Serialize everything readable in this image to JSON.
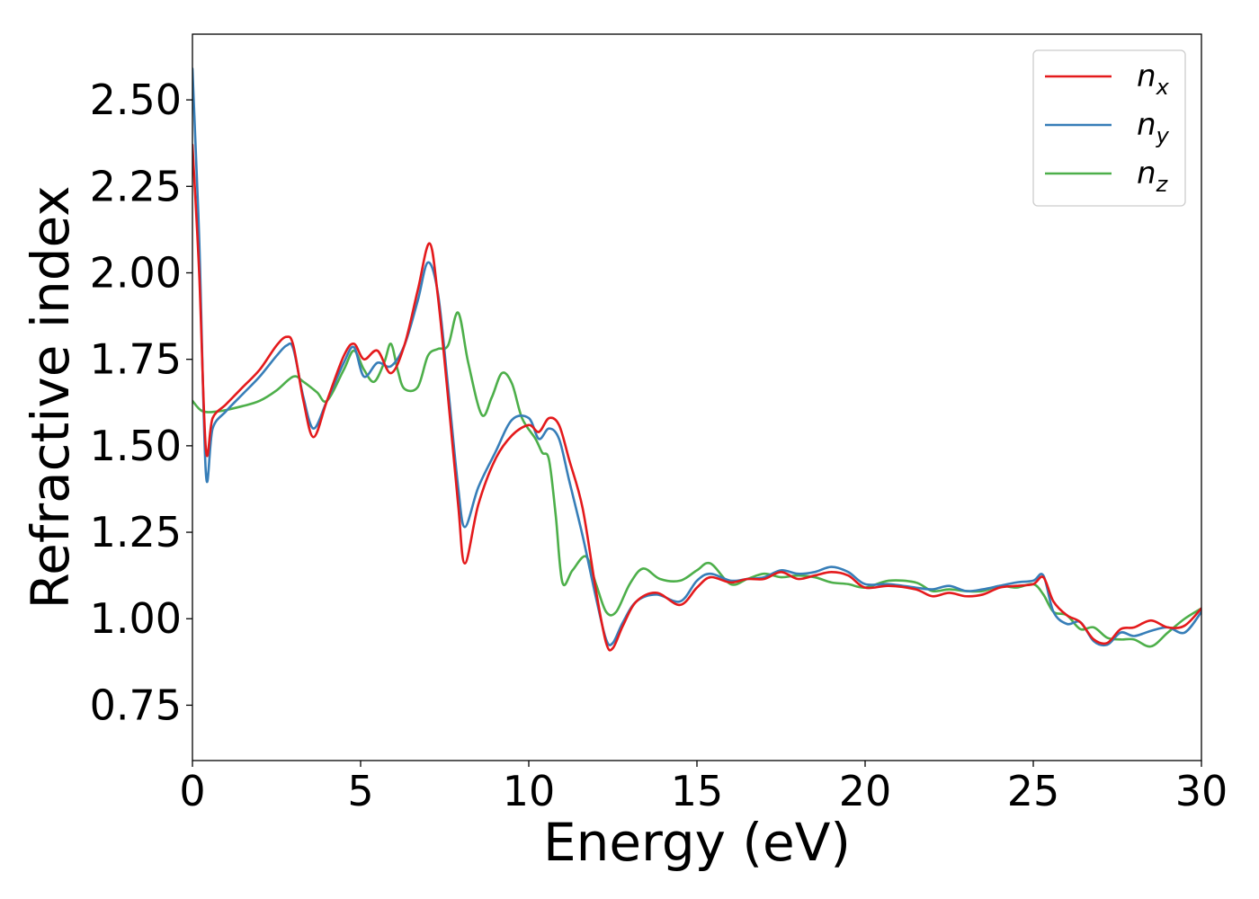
{
  "chart_data": {
    "type": "line",
    "title": "",
    "xlabel": "Energy (eV)",
    "ylabel": "Refractive index",
    "xlim": [
      0,
      30
    ],
    "ylim": [
      0.59,
      2.69
    ],
    "xticks": [
      0,
      5,
      10,
      15,
      20,
      25,
      30
    ],
    "xtick_labels": [
      "0",
      "5",
      "10",
      "15",
      "20",
      "25",
      "30"
    ],
    "yticks": [
      0.75,
      1.0,
      1.25,
      1.5,
      1.75,
      2.0,
      2.25,
      2.5
    ],
    "ytick_labels": [
      "0.75",
      "1.00",
      "1.25",
      "1.50",
      "1.75",
      "2.00",
      "2.25",
      "2.50"
    ],
    "grid": false,
    "legend_position": "top-right",
    "series": [
      {
        "name": "n_x",
        "label_base": "n",
        "label_sub": "x",
        "color": "#e41a1c",
        "points": [
          [
            0,
            2.37
          ],
          [
            0.2,
            2.0
          ],
          [
            0.4,
            1.49
          ],
          [
            0.6,
            1.58
          ],
          [
            1.0,
            1.62
          ],
          [
            1.5,
            1.67
          ],
          [
            2.0,
            1.72
          ],
          [
            2.5,
            1.79
          ],
          [
            2.8,
            1.815
          ],
          [
            3.0,
            1.79
          ],
          [
            3.3,
            1.63
          ],
          [
            3.6,
            1.525
          ],
          [
            4.0,
            1.63
          ],
          [
            4.5,
            1.76
          ],
          [
            4.8,
            1.795
          ],
          [
            5.1,
            1.75
          ],
          [
            5.5,
            1.775
          ],
          [
            5.9,
            1.71
          ],
          [
            6.3,
            1.79
          ],
          [
            6.7,
            1.95
          ],
          [
            7.05,
            2.085
          ],
          [
            7.3,
            1.93
          ],
          [
            7.6,
            1.64
          ],
          [
            7.9,
            1.33
          ],
          [
            8.1,
            1.16
          ],
          [
            8.5,
            1.33
          ],
          [
            9.0,
            1.46
          ],
          [
            9.5,
            1.53
          ],
          [
            10.0,
            1.56
          ],
          [
            10.3,
            1.54
          ],
          [
            10.6,
            1.58
          ],
          [
            10.9,
            1.56
          ],
          [
            11.2,
            1.46
          ],
          [
            11.6,
            1.32
          ],
          [
            12.0,
            1.08
          ],
          [
            12.3,
            0.93
          ],
          [
            12.5,
            0.915
          ],
          [
            12.8,
            0.98
          ],
          [
            13.2,
            1.05
          ],
          [
            13.8,
            1.075
          ],
          [
            14.5,
            1.04
          ],
          [
            15.0,
            1.09
          ],
          [
            15.4,
            1.12
          ],
          [
            16.0,
            1.105
          ],
          [
            16.5,
            1.115
          ],
          [
            17.0,
            1.115
          ],
          [
            17.5,
            1.135
          ],
          [
            18.0,
            1.115
          ],
          [
            18.5,
            1.125
          ],
          [
            19.0,
            1.135
          ],
          [
            19.5,
            1.125
          ],
          [
            20.0,
            1.09
          ],
          [
            20.7,
            1.095
          ],
          [
            21.5,
            1.085
          ],
          [
            22.0,
            1.065
          ],
          [
            22.5,
            1.075
          ],
          [
            23.0,
            1.065
          ],
          [
            23.5,
            1.07
          ],
          [
            24.0,
            1.09
          ],
          [
            24.5,
            1.095
          ],
          [
            25.0,
            1.1
          ],
          [
            25.3,
            1.12
          ],
          [
            25.6,
            1.05
          ],
          [
            26.0,
            1.01
          ],
          [
            26.4,
            0.99
          ],
          [
            26.8,
            0.94
          ],
          [
            27.2,
            0.93
          ],
          [
            27.6,
            0.97
          ],
          [
            28.0,
            0.975
          ],
          [
            28.5,
            0.995
          ],
          [
            29.0,
            0.975
          ],
          [
            29.5,
            0.98
          ],
          [
            30.0,
            1.03
          ]
        ]
      },
      {
        "name": "n_y",
        "label_base": "n",
        "label_sub": "y",
        "color": "#377eb8",
        "points": [
          [
            0,
            2.59
          ],
          [
            0.2,
            2.1
          ],
          [
            0.4,
            1.42
          ],
          [
            0.6,
            1.55
          ],
          [
            1.0,
            1.6
          ],
          [
            1.5,
            1.65
          ],
          [
            2.0,
            1.7
          ],
          [
            2.5,
            1.76
          ],
          [
            2.8,
            1.79
          ],
          [
            3.0,
            1.78
          ],
          [
            3.3,
            1.64
          ],
          [
            3.6,
            1.55
          ],
          [
            4.0,
            1.63
          ],
          [
            4.5,
            1.74
          ],
          [
            4.8,
            1.785
          ],
          [
            5.1,
            1.7
          ],
          [
            5.5,
            1.74
          ],
          [
            5.9,
            1.73
          ],
          [
            6.3,
            1.79
          ],
          [
            6.7,
            1.92
          ],
          [
            7.0,
            2.03
          ],
          [
            7.3,
            1.94
          ],
          [
            7.6,
            1.67
          ],
          [
            7.9,
            1.38
          ],
          [
            8.1,
            1.265
          ],
          [
            8.5,
            1.38
          ],
          [
            9.0,
            1.48
          ],
          [
            9.5,
            1.575
          ],
          [
            10.0,
            1.58
          ],
          [
            10.3,
            1.52
          ],
          [
            10.6,
            1.55
          ],
          [
            10.9,
            1.52
          ],
          [
            11.2,
            1.4
          ],
          [
            11.6,
            1.24
          ],
          [
            12.0,
            1.06
          ],
          [
            12.3,
            0.94
          ],
          [
            12.5,
            0.93
          ],
          [
            12.8,
            0.99
          ],
          [
            13.2,
            1.05
          ],
          [
            13.8,
            1.07
          ],
          [
            14.5,
            1.05
          ],
          [
            15.0,
            1.11
          ],
          [
            15.4,
            1.13
          ],
          [
            16.0,
            1.11
          ],
          [
            16.5,
            1.115
          ],
          [
            17.0,
            1.12
          ],
          [
            17.5,
            1.14
          ],
          [
            18.0,
            1.13
          ],
          [
            18.5,
            1.135
          ],
          [
            19.0,
            1.15
          ],
          [
            19.5,
            1.135
          ],
          [
            20.0,
            1.1
          ],
          [
            20.7,
            1.1
          ],
          [
            21.5,
            1.09
          ],
          [
            22.0,
            1.085
          ],
          [
            22.5,
            1.095
          ],
          [
            23.0,
            1.08
          ],
          [
            23.5,
            1.085
          ],
          [
            24.0,
            1.095
          ],
          [
            24.5,
            1.105
          ],
          [
            25.0,
            1.11
          ],
          [
            25.3,
            1.125
          ],
          [
            25.6,
            1.02
          ],
          [
            26.0,
            0.985
          ],
          [
            26.4,
            0.99
          ],
          [
            26.8,
            0.935
          ],
          [
            27.2,
            0.925
          ],
          [
            27.6,
            0.96
          ],
          [
            28.0,
            0.95
          ],
          [
            28.5,
            0.965
          ],
          [
            29.0,
            0.975
          ],
          [
            29.5,
            0.96
          ],
          [
            30.0,
            1.02
          ]
        ]
      },
      {
        "name": "n_z",
        "label_base": "n",
        "label_sub": "z",
        "color": "#4daf4a",
        "points": [
          [
            0,
            1.63
          ],
          [
            0.3,
            1.6
          ],
          [
            0.8,
            1.6
          ],
          [
            1.5,
            1.615
          ],
          [
            2.0,
            1.63
          ],
          [
            2.5,
            1.66
          ],
          [
            3.0,
            1.7
          ],
          [
            3.3,
            1.685
          ],
          [
            3.7,
            1.655
          ],
          [
            4.0,
            1.63
          ],
          [
            4.5,
            1.72
          ],
          [
            4.8,
            1.775
          ],
          [
            5.1,
            1.72
          ],
          [
            5.4,
            1.685
          ],
          [
            5.7,
            1.74
          ],
          [
            5.9,
            1.795
          ],
          [
            6.1,
            1.72
          ],
          [
            6.3,
            1.665
          ],
          [
            6.7,
            1.67
          ],
          [
            7.0,
            1.76
          ],
          [
            7.3,
            1.78
          ],
          [
            7.6,
            1.79
          ],
          [
            7.9,
            1.885
          ],
          [
            8.2,
            1.74
          ],
          [
            8.6,
            1.59
          ],
          [
            8.9,
            1.64
          ],
          [
            9.2,
            1.71
          ],
          [
            9.5,
            1.68
          ],
          [
            9.8,
            1.58
          ],
          [
            10.2,
            1.52
          ],
          [
            10.4,
            1.48
          ],
          [
            10.6,
            1.46
          ],
          [
            10.8,
            1.3
          ],
          [
            11.0,
            1.105
          ],
          [
            11.3,
            1.14
          ],
          [
            11.7,
            1.18
          ],
          [
            12.0,
            1.1
          ],
          [
            12.3,
            1.02
          ],
          [
            12.6,
            1.02
          ],
          [
            13.0,
            1.1
          ],
          [
            13.4,
            1.145
          ],
          [
            13.9,
            1.115
          ],
          [
            14.5,
            1.11
          ],
          [
            15.0,
            1.14
          ],
          [
            15.4,
            1.16
          ],
          [
            16.0,
            1.1
          ],
          [
            16.5,
            1.115
          ],
          [
            17.0,
            1.13
          ],
          [
            17.5,
            1.12
          ],
          [
            18.0,
            1.125
          ],
          [
            18.5,
            1.12
          ],
          [
            19.0,
            1.105
          ],
          [
            19.5,
            1.1
          ],
          [
            20.0,
            1.09
          ],
          [
            20.7,
            1.11
          ],
          [
            21.5,
            1.105
          ],
          [
            22.0,
            1.08
          ],
          [
            22.5,
            1.085
          ],
          [
            23.0,
            1.08
          ],
          [
            23.5,
            1.08
          ],
          [
            24.0,
            1.095
          ],
          [
            24.5,
            1.09
          ],
          [
            25.0,
            1.1
          ],
          [
            25.3,
            1.07
          ],
          [
            25.6,
            1.02
          ],
          [
            26.0,
            1.01
          ],
          [
            26.4,
            0.97
          ],
          [
            26.8,
            0.975
          ],
          [
            27.2,
            0.945
          ],
          [
            27.6,
            0.94
          ],
          [
            28.0,
            0.94
          ],
          [
            28.5,
            0.92
          ],
          [
            29.0,
            0.96
          ],
          [
            29.5,
            1.0
          ],
          [
            30.0,
            1.03
          ]
        ]
      }
    ]
  }
}
